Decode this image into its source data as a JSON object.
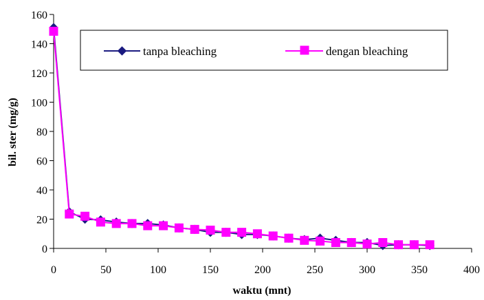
{
  "chart_data": {
    "type": "line",
    "title": "",
    "xlabel": "waktu (mnt)",
    "ylabel": "bil. ster (mg/g)",
    "xlim": [
      0,
      400
    ],
    "ylim": [
      0,
      160
    ],
    "xticks": [
      0,
      50,
      100,
      150,
      200,
      250,
      300,
      350,
      400
    ],
    "yticks": [
      0,
      20,
      40,
      60,
      80,
      100,
      120,
      140,
      160
    ],
    "grid": false,
    "legend_position": "top-right",
    "series": [
      {
        "name": "tanpa bleaching",
        "color": "#1a1a80",
        "marker": "diamond",
        "x": [
          0,
          15,
          30,
          45,
          60,
          75,
          90,
          105,
          120,
          135,
          150,
          165,
          180,
          195,
          210,
          225,
          240,
          255,
          270,
          285,
          300,
          315,
          330,
          345,
          360
        ],
        "y": [
          151,
          25,
          20,
          19.5,
          18,
          17,
          17,
          16,
          14,
          13,
          11,
          11,
          9.5,
          9.5,
          8.5,
          7,
          6,
          7,
          5.5,
          4,
          4,
          2,
          2.5,
          2.5,
          2
        ]
      },
      {
        "name": "dengan bleaching",
        "color": "#ff00ff",
        "marker": "square",
        "x": [
          0,
          15,
          30,
          45,
          60,
          75,
          90,
          105,
          120,
          135,
          150,
          165,
          180,
          195,
          210,
          225,
          240,
          255,
          270,
          285,
          300,
          315,
          330,
          345,
          360
        ],
        "y": [
          148.5,
          23.5,
          22,
          18,
          17,
          17,
          15.5,
          15.5,
          14,
          13,
          12.5,
          11,
          11,
          10,
          8.5,
          7,
          5.5,
          5,
          4,
          4,
          3,
          4,
          2.5,
          2.5,
          2.5
        ]
      }
    ]
  }
}
